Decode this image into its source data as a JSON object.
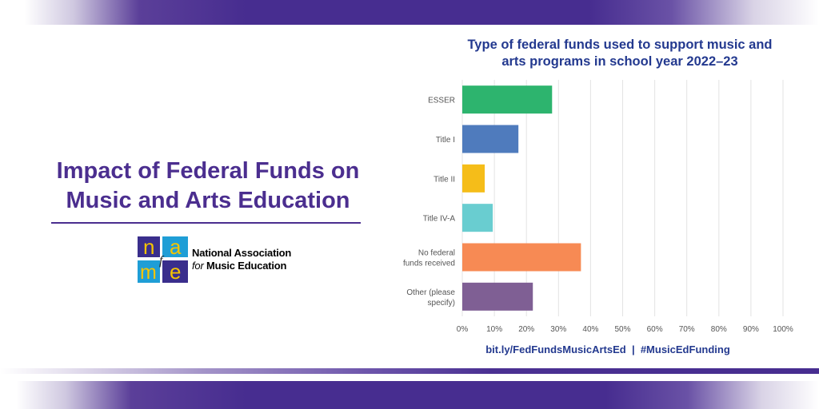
{
  "headline": {
    "line1": "Impact of Federal Funds on",
    "line2": "Music and Arts Education"
  },
  "logo": {
    "letters": [
      "n",
      "a",
      "f",
      "m",
      "e"
    ],
    "name_line1": "National Association",
    "name_line2_italic": "for",
    "name_line2_rest": "Music Education"
  },
  "chart_title": {
    "line1": "Type of federal funds used to support music and",
    "line2": "arts programs in school year 2022–23"
  },
  "footer": "bit.ly/FedFundsMusicArtsEd  |  #MusicEdFunding",
  "colors": {
    "brand_purple": "#472d90",
    "title_blue": "#23398f"
  },
  "chart_data": {
    "type": "bar",
    "orientation": "horizontal",
    "categories": [
      [
        "ESSER"
      ],
      [
        "Title I"
      ],
      [
        "Title II"
      ],
      [
        "Title IV-A"
      ],
      [
        "No federal",
        "funds received"
      ],
      [
        "Other (please",
        "specify)"
      ]
    ],
    "values": [
      28,
      17.5,
      7,
      9.5,
      37,
      22
    ],
    "colors": [
      "#2db46e",
      "#4f7bbd",
      "#f5bd19",
      "#69cdd0",
      "#f78a54",
      "#7f5f94"
    ],
    "xlim": [
      0,
      100
    ],
    "xticks": [
      "0%",
      "10%",
      "20%",
      "30%",
      "40%",
      "50%",
      "60%",
      "70%",
      "80%",
      "90%",
      "100%"
    ],
    "grid": true
  }
}
